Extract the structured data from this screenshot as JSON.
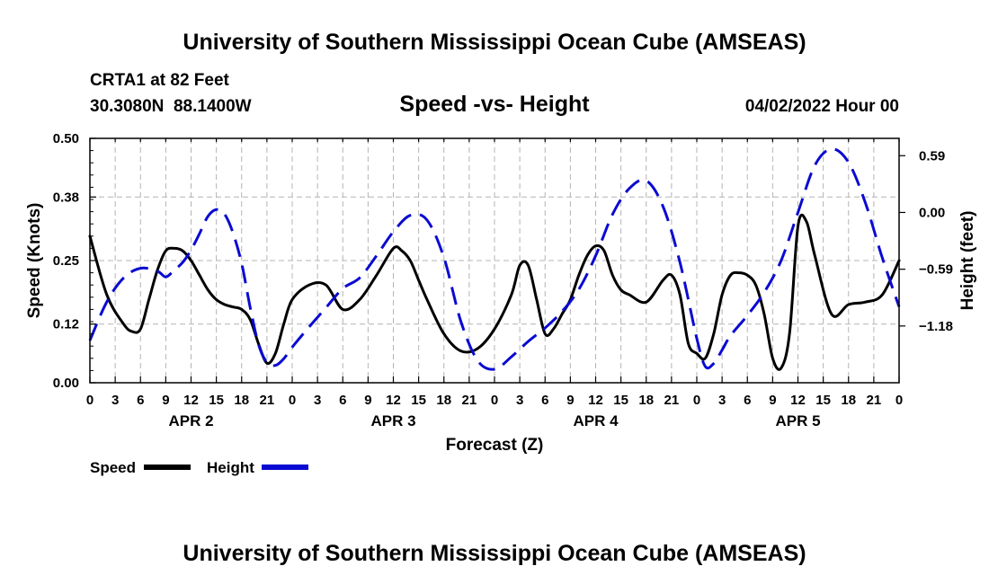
{
  "header": {
    "title": "University of Southern Mississippi Ocean Cube (AMSEAS)",
    "station": "CRTA1 at 82 Feet",
    "coords": "30.3080N  88.1400W",
    "subtitle": "Speed -vs- Height",
    "datetime": "04/02/2022 Hour 00"
  },
  "footer": {
    "title": "University of Southern Mississippi Ocean Cube (AMSEAS)"
  },
  "legend": {
    "speed_label": "Speed",
    "height_label": "Height"
  },
  "colors": {
    "speed": "#000000",
    "height": "#0a0ad2",
    "grid": "#b4b4b4"
  },
  "chart_data": {
    "type": "line",
    "title": "Speed -vs- Height",
    "xlabel": "Forecast (Z)",
    "ylabel": "Speed (Knots)",
    "y2label": "Height (feet)",
    "xlim": [
      0,
      96
    ],
    "ylim": [
      0,
      0.5
    ],
    "y2lim": [
      -1.77,
      0.77
    ],
    "grid": true,
    "x_ticks": [
      0,
      3,
      6,
      9,
      12,
      15,
      18,
      21,
      24,
      27,
      30,
      33,
      36,
      39,
      42,
      45,
      48,
      51,
      54,
      57,
      60,
      63,
      66,
      69,
      72,
      75,
      78,
      81,
      84,
      87,
      90,
      93,
      96
    ],
    "x_tick_labels": [
      "0",
      "3",
      "6",
      "9",
      "12",
      "15",
      "18",
      "21",
      "0",
      "3",
      "6",
      "9",
      "12",
      "15",
      "18",
      "21",
      "0",
      "3",
      "6",
      "9",
      "12",
      "15",
      "18",
      "21",
      "0",
      "3",
      "6",
      "9",
      "12",
      "15",
      "18",
      "21",
      "0"
    ],
    "day_labels": [
      {
        "x": 12,
        "label": "APR 2"
      },
      {
        "x": 36,
        "label": "APR 3"
      },
      {
        "x": 60,
        "label": "APR 4"
      },
      {
        "x": 84,
        "label": "APR 5"
      }
    ],
    "y_ticks": [
      0.0,
      0.12,
      0.25,
      0.38,
      0.5
    ],
    "y_tick_labels": [
      "0.00",
      "0.12",
      "0.25",
      "0.38",
      "0.50"
    ],
    "y2_ticks": [
      0.59,
      0.0,
      -0.59,
      -1.18
    ],
    "y2_tick_labels": [
      "0.59",
      "0.00",
      "−0.59",
      "−1.18"
    ],
    "series": [
      {
        "name": "Speed",
        "axis": "left",
        "style": "solid",
        "x": [
          0,
          2,
          4,
          5,
          6,
          7,
          8,
          9,
          10,
          11,
          12,
          13,
          14,
          15,
          16,
          17,
          18,
          19,
          20,
          21,
          22,
          23,
          24,
          26,
          28,
          30,
          32,
          34,
          36,
          37,
          38,
          39,
          40,
          42,
          44,
          46,
          48,
          50,
          51,
          52,
          53,
          54,
          55,
          56,
          57,
          58,
          59,
          60,
          61,
          62,
          63,
          64,
          66,
          68,
          69,
          70,
          71,
          72,
          73,
          74,
          75,
          76,
          77,
          78,
          79,
          80,
          81,
          82,
          83,
          84,
          85,
          86,
          88,
          90,
          92,
          94,
          96
        ],
        "values": [
          0.3,
          0.18,
          0.12,
          0.105,
          0.11,
          0.17,
          0.23,
          0.27,
          0.275,
          0.27,
          0.25,
          0.22,
          0.19,
          0.17,
          0.16,
          0.155,
          0.15,
          0.13,
          0.08,
          0.04,
          0.06,
          0.12,
          0.17,
          0.2,
          0.2,
          0.15,
          0.17,
          0.22,
          0.275,
          0.27,
          0.25,
          0.21,
          0.17,
          0.1,
          0.065,
          0.07,
          0.11,
          0.18,
          0.24,
          0.24,
          0.17,
          0.1,
          0.11,
          0.14,
          0.17,
          0.22,
          0.26,
          0.28,
          0.27,
          0.22,
          0.19,
          0.18,
          0.165,
          0.21,
          0.22,
          0.18,
          0.08,
          0.06,
          0.05,
          0.1,
          0.18,
          0.22,
          0.225,
          0.22,
          0.2,
          0.14,
          0.05,
          0.03,
          0.1,
          0.32,
          0.33,
          0.26,
          0.14,
          0.16,
          0.165,
          0.18,
          0.25
        ]
      },
      {
        "name": "Height",
        "axis": "right",
        "style": "dashed",
        "x": [
          0,
          2,
          4,
          6,
          8,
          9,
          10,
          11,
          12,
          13,
          14,
          15,
          16,
          17,
          18,
          19,
          20,
          21,
          22,
          23,
          24,
          26,
          28,
          30,
          32,
          34,
          36,
          38,
          40,
          42,
          44,
          46,
          48,
          50,
          52,
          54,
          56,
          58,
          60,
          62,
          64,
          66,
          68,
          70,
          72,
          73,
          74,
          75,
          76,
          78,
          80,
          82,
          84,
          86,
          88,
          90,
          92,
          94,
          96
        ],
        "values": [
          -1.33,
          -0.93,
          -0.68,
          -0.58,
          -0.61,
          -0.67,
          -0.6,
          -0.52,
          -0.39,
          -0.22,
          -0.04,
          0.03,
          -0.02,
          -0.22,
          -0.53,
          -0.98,
          -1.37,
          -1.56,
          -1.59,
          -1.52,
          -1.4,
          -1.19,
          -0.99,
          -0.79,
          -0.68,
          -0.45,
          -0.2,
          -0.03,
          -0.08,
          -0.47,
          -1.13,
          -1.54,
          -1.63,
          -1.5,
          -1.34,
          -1.2,
          -1.03,
          -0.8,
          -0.45,
          -0.02,
          0.25,
          0.33,
          0.06,
          -0.52,
          -1.31,
          -1.6,
          -1.57,
          -1.43,
          -1.28,
          -1.07,
          -0.83,
          -0.5,
          0.0,
          0.49,
          0.66,
          0.52,
          0.1,
          -0.47,
          -0.98
        ]
      }
    ]
  }
}
